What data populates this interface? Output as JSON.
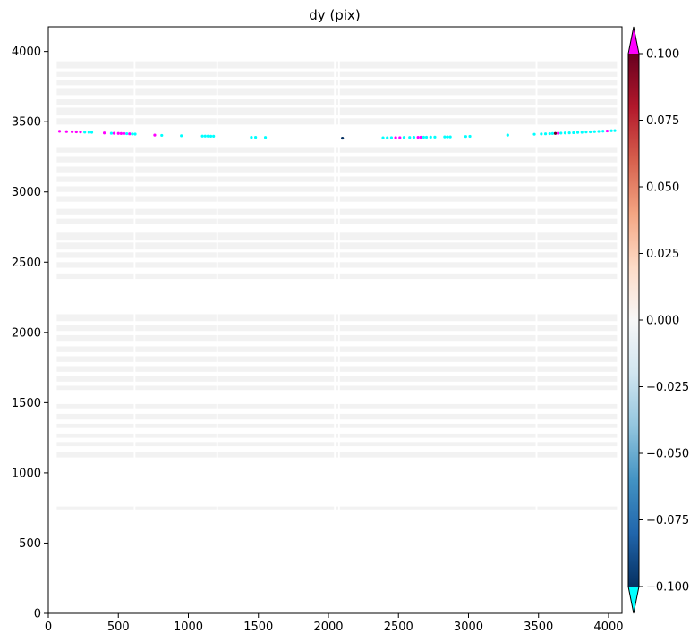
{
  "chart_data": {
    "type": "scatter",
    "title": "dy (pix)",
    "xlabel": "",
    "ylabel": "",
    "xlim": [
      0,
      4096
    ],
    "ylim": [
      0,
      4176
    ],
    "xticks": [
      0,
      500,
      1000,
      1500,
      2000,
      2500,
      3000,
      3500,
      4000
    ],
    "yticks": [
      0,
      500,
      1000,
      1500,
      2000,
      2500,
      3000,
      3500,
      4000
    ],
    "xtick_labels": [
      "0",
      "500",
      "1000",
      "1500",
      "2000",
      "2500",
      "3000",
      "3500",
      "4000"
    ],
    "ytick_labels": [
      "0",
      "500",
      "1000",
      "1500",
      "2000",
      "2500",
      "3000",
      "3500",
      "4000"
    ],
    "grid": false,
    "colorbar": {
      "label": "",
      "vmin": -0.1,
      "vmax": 0.1,
      "ticks": [
        0.1,
        0.075,
        0.05,
        0.025,
        0.0,
        -0.025,
        -0.05,
        -0.075,
        -0.1
      ],
      "tick_labels": [
        "0.100",
        "0.075",
        "0.050",
        "0.025",
        "0.000",
        "−0.025",
        "−0.050",
        "−0.075",
        "−0.100"
      ],
      "colormap": "RdBu_r",
      "over_color": "#ff00ff",
      "under_color": "#00ffff",
      "extend": "both"
    },
    "background_bands": {
      "color": "#f2f2f2",
      "y_bands": [
        [
          3880,
          3930
        ],
        [
          3820,
          3860
        ],
        [
          3760,
          3800
        ],
        [
          3690,
          3740
        ],
        [
          3620,
          3660
        ],
        [
          3545,
          3600
        ],
        [
          3480,
          3525
        ],
        [
          3280,
          3320
        ],
        [
          3210,
          3250
        ],
        [
          3140,
          3180
        ],
        [
          3070,
          3110
        ],
        [
          3000,
          3040
        ],
        [
          2930,
          2970
        ],
        [
          2840,
          2880
        ],
        [
          2770,
          2810
        ],
        [
          2660,
          2710
        ],
        [
          2590,
          2640
        ],
        [
          2530,
          2570
        ],
        [
          2460,
          2500
        ],
        [
          2380,
          2420
        ],
        [
          2080,
          2130
        ],
        [
          2010,
          2050
        ],
        [
          1940,
          1980
        ],
        [
          1860,
          1900
        ],
        [
          1790,
          1830
        ],
        [
          1720,
          1760
        ],
        [
          1650,
          1690
        ],
        [
          1590,
          1620
        ],
        [
          1460,
          1490
        ],
        [
          1380,
          1420
        ],
        [
          1320,
          1350
        ],
        [
          1250,
          1280
        ],
        [
          1190,
          1220
        ],
        [
          1110,
          1150
        ],
        [
          740,
          760
        ]
      ],
      "x_gaps": [
        610,
        1200,
        2040,
        2070,
        3480
      ]
    },
    "series": [
      {
        "values": [
          {
            "x": 80,
            "y": 3432,
            "v": "over"
          },
          {
            "x": 130,
            "y": 3430,
            "v": "over"
          },
          {
            "x": 170,
            "y": 3429,
            "v": "over"
          },
          {
            "x": 200,
            "y": 3428,
            "v": "over"
          },
          {
            "x": 230,
            "y": 3427,
            "v": "over"
          },
          {
            "x": 260,
            "y": 3426,
            "v": "under"
          },
          {
            "x": 290,
            "y": 3425,
            "v": "under"
          },
          {
            "x": 310,
            "y": 3425,
            "v": "under"
          },
          {
            "x": 400,
            "y": 3420,
            "v": "over"
          },
          {
            "x": 450,
            "y": 3418,
            "v": "under"
          },
          {
            "x": 470,
            "y": 3418,
            "v": "over"
          },
          {
            "x": 500,
            "y": 3417,
            "v": "over"
          },
          {
            "x": 520,
            "y": 3416,
            "v": "over"
          },
          {
            "x": 540,
            "y": 3416,
            "v": "over"
          },
          {
            "x": 560,
            "y": 3415,
            "v": "under"
          },
          {
            "x": 580,
            "y": 3414,
            "v": "over"
          },
          {
            "x": 600,
            "y": 3413,
            "v": "under"
          },
          {
            "x": 620,
            "y": 3412,
            "v": "under"
          },
          {
            "x": 760,
            "y": 3405,
            "v": "over"
          },
          {
            "x": 810,
            "y": 3403,
            "v": "under"
          },
          {
            "x": 950,
            "y": 3400,
            "v": "under"
          },
          {
            "x": 1100,
            "y": 3398,
            "v": "under"
          },
          {
            "x": 1120,
            "y": 3398,
            "v": "under"
          },
          {
            "x": 1140,
            "y": 3398,
            "v": "under"
          },
          {
            "x": 1160,
            "y": 3397,
            "v": "under"
          },
          {
            "x": 1180,
            "y": 3397,
            "v": "under"
          },
          {
            "x": 1450,
            "y": 3389,
            "v": "under"
          },
          {
            "x": 1480,
            "y": 3389,
            "v": "under"
          },
          {
            "x": 1550,
            "y": 3388,
            "v": "under"
          },
          {
            "x": 2100,
            "y": 3383,
            "v": -0.1
          },
          {
            "x": 2390,
            "y": 3386,
            "v": "under"
          },
          {
            "x": 2420,
            "y": 3386,
            "v": "under"
          },
          {
            "x": 2450,
            "y": 3387,
            "v": "under"
          },
          {
            "x": 2480,
            "y": 3387,
            "v": "over"
          },
          {
            "x": 2510,
            "y": 3387,
            "v": "over"
          },
          {
            "x": 2540,
            "y": 3388,
            "v": "under"
          },
          {
            "x": 2580,
            "y": 3388,
            "v": "under"
          },
          {
            "x": 2610,
            "y": 3389,
            "v": "under"
          },
          {
            "x": 2640,
            "y": 3389,
            "v": "over"
          },
          {
            "x": 2660,
            "y": 3390,
            "v": "over"
          },
          {
            "x": 2680,
            "y": 3390,
            "v": "under"
          },
          {
            "x": 2700,
            "y": 3390,
            "v": "under"
          },
          {
            "x": 2730,
            "y": 3391,
            "v": "under"
          },
          {
            "x": 2760,
            "y": 3391,
            "v": "under"
          },
          {
            "x": 2830,
            "y": 3392,
            "v": "under"
          },
          {
            "x": 2850,
            "y": 3392,
            "v": "under"
          },
          {
            "x": 2870,
            "y": 3392,
            "v": "under"
          },
          {
            "x": 2980,
            "y": 3395,
            "v": "under"
          },
          {
            "x": 3010,
            "y": 3396,
            "v": "under"
          },
          {
            "x": 3280,
            "y": 3405,
            "v": "under"
          },
          {
            "x": 3470,
            "y": 3411,
            "v": "under"
          },
          {
            "x": 3520,
            "y": 3413,
            "v": "under"
          },
          {
            "x": 3550,
            "y": 3414,
            "v": "under"
          },
          {
            "x": 3580,
            "y": 3415,
            "v": "under"
          },
          {
            "x": 3600,
            "y": 3416,
            "v": "under"
          },
          {
            "x": 3620,
            "y": 3417,
            "v": 0.1
          },
          {
            "x": 3640,
            "y": 3418,
            "v": "over"
          },
          {
            "x": 3660,
            "y": 3419,
            "v": "under"
          },
          {
            "x": 3690,
            "y": 3420,
            "v": "under"
          },
          {
            "x": 3720,
            "y": 3421,
            "v": "under"
          },
          {
            "x": 3750,
            "y": 3422,
            "v": "under"
          },
          {
            "x": 3780,
            "y": 3424,
            "v": "under"
          },
          {
            "x": 3810,
            "y": 3425,
            "v": "under"
          },
          {
            "x": 3840,
            "y": 3427,
            "v": "under"
          },
          {
            "x": 3870,
            "y": 3428,
            "v": "under"
          },
          {
            "x": 3900,
            "y": 3430,
            "v": "under"
          },
          {
            "x": 3930,
            "y": 3431,
            "v": "under"
          },
          {
            "x": 3960,
            "y": 3433,
            "v": "under"
          },
          {
            "x": 3990,
            "y": 3434,
            "v": "over"
          },
          {
            "x": 4020,
            "y": 3436,
            "v": "under"
          },
          {
            "x": 4045,
            "y": 3437,
            "v": "under"
          }
        ]
      }
    ]
  }
}
